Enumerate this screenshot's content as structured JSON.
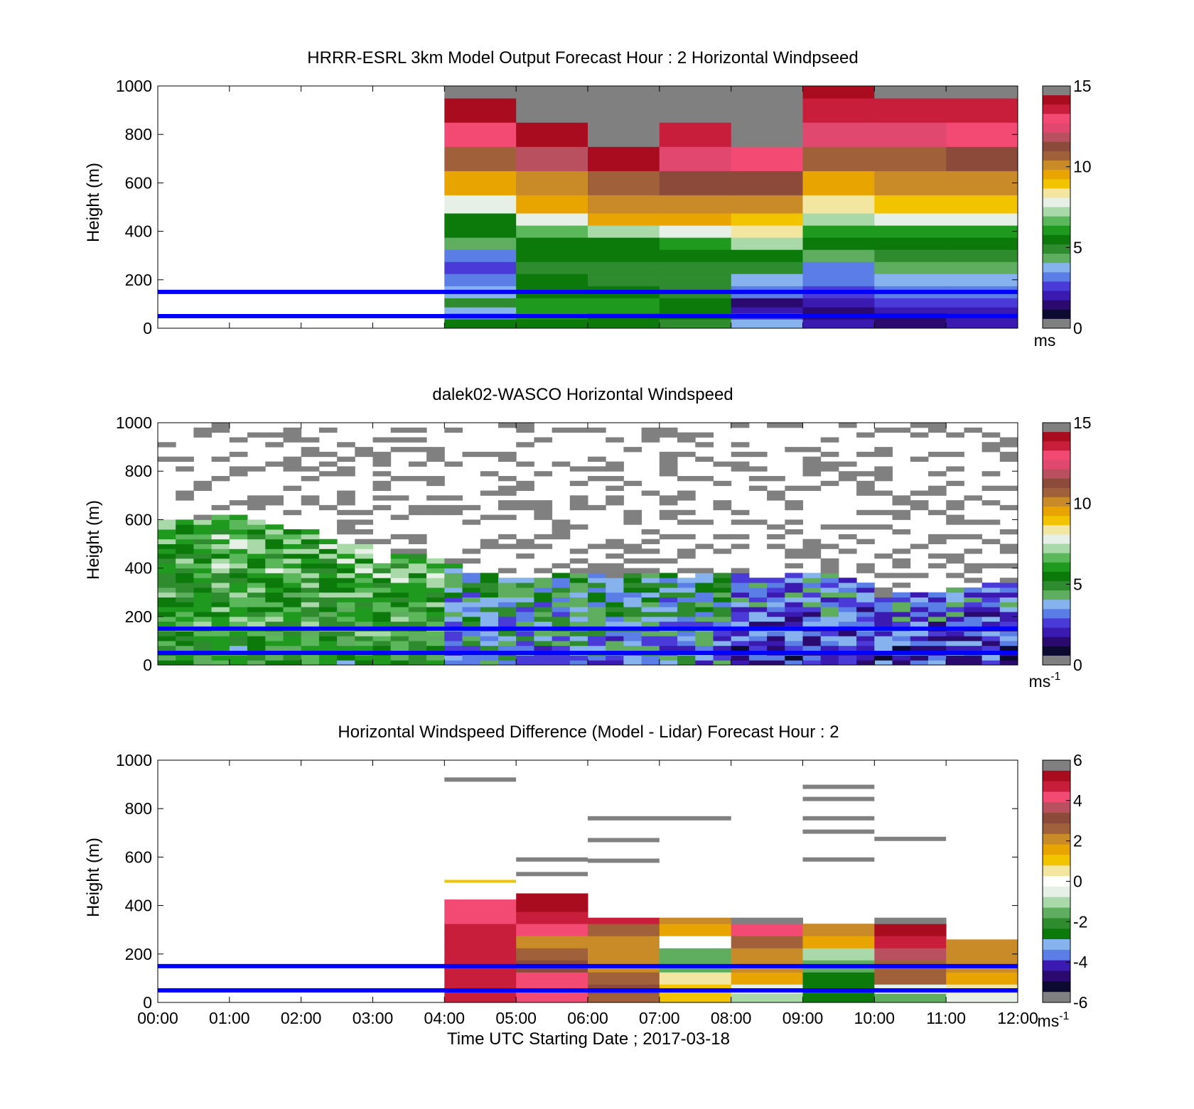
{
  "colors": {
    "neutral_gray": "#808080",
    "reference_lines": "#0000ff",
    "windspeed_colormap": [
      "#0c0a30",
      "#2a0a6e",
      "#3a1ab0",
      "#4a3ad8",
      "#5a7ee6",
      "#86b2ee",
      "#5fae5f",
      "#2e8b2e",
      "#0b7a0b",
      "#1f9a1f",
      "#5ab85a",
      "#a9d9a9",
      "#e6f0e6",
      "#f2e6a0",
      "#f2c400",
      "#e8a400",
      "#c98a28",
      "#a0603a",
      "#8c4a3a",
      "#b85060",
      "#e04870",
      "#f24a72",
      "#c81e3c",
      "#a80c1e"
    ],
    "difference_colormap": [
      "#0c0a30",
      "#2a0a6e",
      "#3a1ab0",
      "#5a7ee6",
      "#86b2ee",
      "#0b7a0b",
      "#2e8b2e",
      "#5fae5f",
      "#a9d9a9",
      "#e6f0e6",
      "#ffffff",
      "#f2e6a0",
      "#f2c400",
      "#e8a400",
      "#c98a28",
      "#a0603a",
      "#8c4a3a",
      "#b85060",
      "#f24a72",
      "#c81e3c",
      "#a80c1e"
    ]
  },
  "figure": {
    "xlabel": "Time UTC  Starting Date ; 2017-03-18"
  },
  "chart_data": [
    {
      "type": "heatmap",
      "title": "HRRR-ESRL 3km Model Output   Forecast Hour : 2 Horizontal Windpseed",
      "ylabel": "Height (m)",
      "xlim": [
        "00:00",
        "12:00"
      ],
      "ylim": [
        0,
        1000
      ],
      "yticks": [
        "0",
        "200",
        "400",
        "600",
        "800",
        "1000"
      ],
      "xticks": [
        "00:00",
        "01:00",
        "02:00",
        "03:00",
        "04:00",
        "05:00",
        "06:00",
        "07:00",
        "08:00",
        "09:00",
        "10:00",
        "11:00",
        "12:00"
      ],
      "colorbar": {
        "min": 0,
        "max": 15,
        "ticks": [
          "0",
          "5",
          "10",
          "15"
        ],
        "unit_base": "ms",
        "unit_exp": ""
      },
      "grid": false,
      "reference_lines_m": [
        50,
        150
      ],
      "data_coverage": [
        "04:00",
        "12:00"
      ],
      "time_columns": [
        "04:00",
        "05:00",
        "06:00",
        "07:00",
        "08:00",
        "09:00",
        "10:00",
        "11:00"
      ],
      "height_levels_m": [
        25,
        50,
        75,
        100,
        150,
        200,
        250,
        300,
        350,
        400,
        450,
        500,
        600,
        700,
        800,
        900,
        1000
      ],
      "values": [
        [
          5.0,
          3.0,
          3.2,
          4.5,
          3.5,
          2.5,
          2.0,
          2.5,
          4.0,
          5.0,
          5.5,
          8.0,
          9.5,
          11.0,
          13.5,
          14.5,
          15.5
        ],
        [
          5.5,
          5.8,
          5.8,
          6.0,
          5.5,
          5.0,
          4.8,
          5.0,
          5.5,
          6.5,
          8.0,
          9.5,
          10.5,
          12.0,
          14.5,
          15.5,
          15.5
        ],
        [
          5.0,
          5.5,
          5.8,
          5.8,
          5.2,
          4.8,
          4.8,
          5.0,
          5.5,
          7.0,
          9.5,
          10.0,
          11.0,
          14.5,
          15.5,
          15.5,
          15.5
        ],
        [
          4.8,
          5.0,
          5.2,
          5.0,
          4.8,
          4.5,
          4.5,
          5.0,
          6.0,
          7.5,
          9.5,
          10.0,
          11.5,
          13.0,
          14.0,
          15.5,
          15.5
        ],
        [
          3.5,
          2.0,
          1.5,
          1.0,
          2.5,
          3.5,
          4.5,
          5.0,
          7.0,
          8.5,
          9.0,
          10.5,
          11.5,
          13.5,
          15.5,
          15.5,
          15.5
        ],
        [
          1.5,
          1.0,
          1.0,
          1.5,
          2.0,
          2.5,
          3.0,
          4.0,
          5.0,
          6.0,
          7.0,
          8.5,
          9.5,
          11.0,
          12.5,
          14.0,
          14.5
        ],
        [
          1.0,
          1.0,
          1.5,
          2.0,
          3.0,
          3.5,
          4.0,
          4.5,
          5.0,
          6.0,
          7.5,
          9.0,
          10.0,
          11.0,
          13.0,
          14.0,
          15.5
        ],
        [
          1.5,
          1.5,
          1.5,
          2.0,
          3.0,
          3.5,
          4.0,
          4.5,
          5.0,
          6.0,
          7.5,
          9.0,
          10.5,
          11.5,
          13.5,
          14.0,
          15.5
        ]
      ]
    },
    {
      "type": "heatmap",
      "title": "dalek02-WASCO  Horizontal Windspeed",
      "ylabel": "Height (m)",
      "xlim": [
        "00:00",
        "12:00"
      ],
      "ylim": [
        0,
        1000
      ],
      "yticks": [
        "0",
        "200",
        "400",
        "600",
        "800",
        "1000"
      ],
      "xticks": [
        "00:00",
        "01:00",
        "02:00",
        "03:00",
        "04:00",
        "05:00",
        "06:00",
        "07:00",
        "08:00",
        "09:00",
        "10:00",
        "11:00",
        "12:00"
      ],
      "colorbar": {
        "min": 0,
        "max": 15,
        "ticks": [
          "0",
          "5",
          "10",
          "15"
        ],
        "unit_base": "ms",
        "unit_exp": "-1"
      },
      "grid": false,
      "reference_lines_m": [
        50,
        150
      ],
      "time_resolution_minutes": 15,
      "height_resolution_m": 20,
      "data_top_m": [
        600,
        600,
        600,
        610,
        620,
        590,
        580,
        560,
        560,
        520,
        500,
        490,
        420,
        450,
        460,
        440,
        420,
        380,
        370,
        360,
        350,
        360,
        380,
        370,
        370,
        360,
        370,
        370,
        380,
        360,
        370,
        380,
        370,
        360,
        360,
        380,
        380,
        380,
        360,
        340,
        280,
        290,
        300,
        300,
        310,
        320,
        330,
        340
      ],
      "mean_windspeed_profile": [
        {
          "times": [
            "00:00",
            "04:00"
          ],
          "windspeed_below_500m": 5.2
        },
        {
          "times": [
            "04:00",
            "08:00"
          ],
          "windspeed_below_400m": 3.0
        },
        {
          "times": [
            "08:00",
            "12:00"
          ],
          "windspeed_below_350m": 1.8
        }
      ]
    },
    {
      "type": "heatmap",
      "title": "Horizontal Windspeed Difference (Model - Lidar) Forecast Hour : 2",
      "ylabel": "Height (m)",
      "xlim": [
        "00:00",
        "12:00"
      ],
      "ylim": [
        0,
        1000
      ],
      "yticks": [
        "0",
        "200",
        "400",
        "600",
        "800",
        "1000"
      ],
      "xticks": [
        "00:00",
        "01:00",
        "02:00",
        "03:00",
        "04:00",
        "05:00",
        "06:00",
        "07:00",
        "08:00",
        "09:00",
        "10:00",
        "11:00",
        "12:00"
      ],
      "colorbar": {
        "min": -6,
        "max": 6,
        "ticks": [
          "-6",
          "-4",
          "-2",
          "0",
          "2",
          "4",
          "6"
        ],
        "unit_base": "ms",
        "unit_exp": "-1"
      },
      "grid": false,
      "reference_lines_m": [
        50,
        150
      ],
      "time_columns": [
        "04:00",
        "05:00",
        "06:00",
        "07:00",
        "08:00",
        "09:00",
        "10:00",
        "11:00"
      ],
      "profile_top_m": [
        430,
        450,
        350,
        350,
        350,
        325,
        350,
        260
      ],
      "height_levels_m": [
        25,
        50,
        100,
        150,
        200,
        250,
        300,
        350,
        400,
        450
      ],
      "values": [
        [
          5.0,
          5.0,
          5.0,
          5.0,
          5.0,
          5.0,
          5.0,
          4.8,
          4.5,
          null
        ],
        [
          4.8,
          4.5,
          4.8,
          3.5,
          3.0,
          2.5,
          4.5,
          5.0,
          5.5,
          5.5
        ],
        [
          3.0,
          3.2,
          3.0,
          2.5,
          2.0,
          2.5,
          3.0,
          5.0,
          null,
          null
        ],
        [
          1.0,
          1.0,
          0.5,
          -1.5,
          -1.5,
          0.0,
          1.5,
          2.0,
          null,
          null
        ],
        [
          -1.0,
          -0.5,
          1.5,
          2.0,
          2.5,
          3.0,
          4.5,
          7.0,
          null,
          null
        ],
        [
          -3.0,
          -3.0,
          -3.0,
          -2.0,
          -1.0,
          1.5,
          2.0,
          null,
          null,
          null
        ],
        [
          -1.5,
          -0.5,
          3.0,
          3.0,
          4.0,
          5.0,
          5.5,
          6.5,
          null,
          null
        ],
        [
          -0.5,
          0.5,
          1.5,
          2.0,
          2.0,
          2.5,
          null,
          null,
          null,
          null
        ]
      ],
      "out_of_range_segments": [
        {
          "times": [
            "04:00",
            "05:00"
          ],
          "height_m": 920
        },
        {
          "times": [
            "05:00",
            "06:00"
          ],
          "height_m": 590
        },
        {
          "times": [
            "05:00",
            "06:00"
          ],
          "height_m": 530
        },
        {
          "times": [
            "06:00",
            "08:00"
          ],
          "height_m": 760
        },
        {
          "times": [
            "06:00",
            "07:00"
          ],
          "height_m": 670
        },
        {
          "times": [
            "06:00",
            "07:00"
          ],
          "height_m": 585
        },
        {
          "times": [
            "09:00",
            "10:00"
          ],
          "height_m": 890
        },
        {
          "times": [
            "09:00",
            "10:00"
          ],
          "height_m": 840
        },
        {
          "times": [
            "09:00",
            "10:00"
          ],
          "height_m": 760
        },
        {
          "times": [
            "09:00",
            "10:00"
          ],
          "height_m": 705
        },
        {
          "times": [
            "09:00",
            "10:00"
          ],
          "height_m": 590
        },
        {
          "times": [
            "10:00",
            "11:00"
          ],
          "height_m": 675
        }
      ],
      "positive_segments": [
        {
          "times": [
            "04:00",
            "05:00"
          ],
          "height_m": 500,
          "value": 1.0
        }
      ]
    }
  ]
}
